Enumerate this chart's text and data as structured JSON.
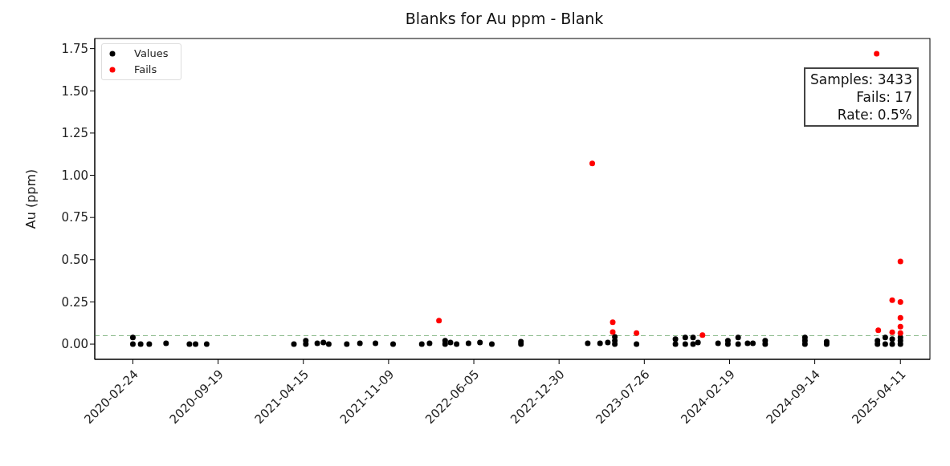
{
  "chart_data": {
    "type": "scatter",
    "title": "Blanks for Au ppm - Blank",
    "ylabel": "Au (ppm)",
    "xlim": [
      "2019-11-23",
      "2025-06-22"
    ],
    "xticks": [
      "2020-02-24",
      "2020-09-19",
      "2021-04-15",
      "2021-11-09",
      "2022-06-05",
      "2022-12-30",
      "2023-07-26",
      "2024-02-19",
      "2024-09-14",
      "2025-04-11"
    ],
    "ylim": [
      -0.09,
      1.81
    ],
    "yticks": [
      {
        "value": 0,
        "label": "0.00"
      },
      {
        "value": 0.25,
        "label": "0.25"
      },
      {
        "value": 0.5,
        "label": "0.50"
      },
      {
        "value": 0.75,
        "label": "0.75"
      },
      {
        "value": 1,
        "label": "1.00"
      },
      {
        "value": 1.25,
        "label": "1.25"
      },
      {
        "value": 1.5,
        "label": "1.50"
      },
      {
        "value": 1.75,
        "label": "1.75"
      }
    ],
    "grid": false,
    "legend": "top left",
    "marker": "circle",
    "ref_lines": [
      {
        "axis": "y",
        "value": 0.05,
        "color": "#8fbc8f",
        "line_style": "dashed"
      }
    ],
    "annotations": [
      "Samples: 3433",
      "Fails: 17",
      "Rate: 0.5%"
    ],
    "series": [
      {
        "name": "Values",
        "color": "#000000",
        "x": [
          "2020-02-24",
          "2020-02-24",
          "2020-03-14",
          "2020-04-04",
          "2020-05-15",
          "2020-07-11",
          "2020-07-26",
          "2020-08-22",
          "2021-03-23",
          "2021-04-21",
          "2021-04-21",
          "2021-05-19",
          "2021-06-03",
          "2021-06-16",
          "2021-07-30",
          "2021-08-31",
          "2021-10-08",
          "2021-11-20",
          "2022-01-29",
          "2022-02-17",
          "2022-03-27",
          "2022-03-27",
          "2022-04-09",
          "2022-04-24",
          "2022-05-23",
          "2022-06-20",
          "2022-07-19",
          "2022-09-28",
          "2022-09-28",
          "2023-03-10",
          "2023-04-09",
          "2023-04-28",
          "2023-05-15",
          "2023-05-15",
          "2023-05-15",
          "2023-07-07",
          "2023-10-10",
          "2023-10-10",
          "2023-11-03",
          "2023-11-03",
          "2023-11-22",
          "2023-11-22",
          "2023-12-04",
          "2024-01-22",
          "2024-02-15",
          "2024-02-15",
          "2024-03-11",
          "2024-03-11",
          "2024-04-03",
          "2024-04-16",
          "2024-05-16",
          "2024-05-16",
          "2024-08-21",
          "2024-08-21",
          "2024-08-21",
          "2024-10-13",
          "2024-10-13",
          "2025-02-14",
          "2025-02-14",
          "2025-03-05",
          "2025-03-05",
          "2025-03-22",
          "2025-03-22",
          "2025-04-11",
          "2025-04-11",
          "2025-04-11"
        ],
        "values": [
          0.04,
          0.0,
          0.0,
          0.0,
          0.005,
          0.0,
          0.0,
          0.0,
          0.0,
          0.0,
          0.02,
          0.005,
          0.01,
          0.0,
          0.0,
          0.005,
          0.005,
          0.0,
          0.0,
          0.005,
          0.0,
          0.02,
          0.01,
          0.0,
          0.005,
          0.01,
          0.0,
          0.0,
          0.015,
          0.005,
          0.005,
          0.01,
          0.0,
          0.02,
          0.043,
          0.0,
          0.0,
          0.03,
          0.0,
          0.04,
          0.0,
          0.04,
          0.01,
          0.005,
          0.0,
          0.02,
          0.0,
          0.04,
          0.005,
          0.005,
          0.0,
          0.02,
          0.0,
          0.02,
          0.04,
          0.0,
          0.015,
          0.0,
          0.02,
          0.0,
          0.04,
          0.0,
          0.03,
          0.0,
          0.02,
          0.04
        ]
      },
      {
        "name": "Fails",
        "color": "#ff0000",
        "x": [
          "2022-03-12",
          "2023-03-21",
          "2023-05-10",
          "2023-05-10",
          "2023-07-07",
          "2023-12-15",
          "2025-02-12",
          "2025-02-16",
          "2025-03-22",
          "2025-03-22",
          "2025-04-11",
          "2025-04-11",
          "2025-04-11",
          "2025-04-11",
          "2025-04-11"
        ],
        "values": [
          0.139,
          1.07,
          0.13,
          0.071,
          0.065,
          0.054,
          1.72,
          0.082,
          0.26,
          0.07,
          0.49,
          0.25,
          0.156,
          0.104,
          0.065
        ]
      }
    ]
  }
}
